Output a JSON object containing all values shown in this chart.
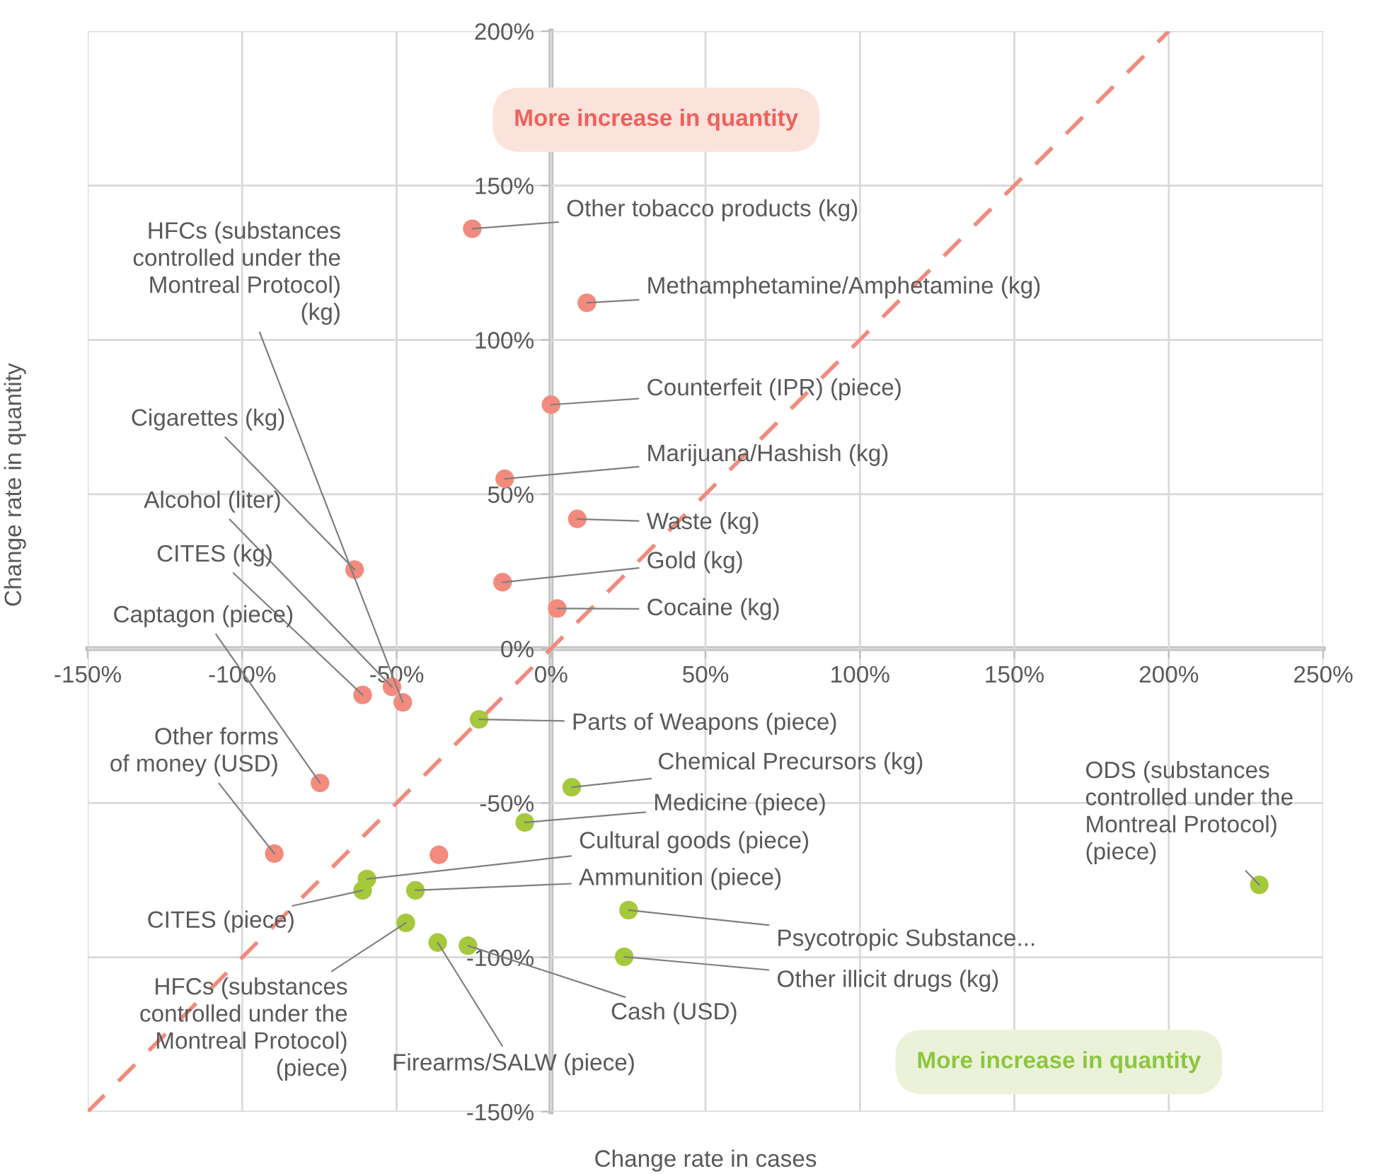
{
  "chart_data": {
    "type": "scatter",
    "xlabel": "Change rate in cases",
    "ylabel": "Change rate in quantity",
    "xlim": [
      -150,
      250
    ],
    "ylim": [
      -150,
      200
    ],
    "xticks": [
      {
        "value": -150,
        "label": "-150%"
      },
      {
        "value": -100,
        "label": "-100%"
      },
      {
        "value": -50,
        "label": "-50%"
      },
      {
        "value": 0,
        "label": "0%"
      },
      {
        "value": 50,
        "label": "50%"
      },
      {
        "value": 100,
        "label": "100%"
      },
      {
        "value": 150,
        "label": "150%"
      },
      {
        "value": 200,
        "label": "200%"
      },
      {
        "value": 250,
        "label": "250%"
      }
    ],
    "yticks": [
      {
        "value": -150,
        "label": "-150%"
      },
      {
        "value": -100,
        "label": "-100%"
      },
      {
        "value": -50,
        "label": "-50%"
      },
      {
        "value": 0,
        "label": "0%"
      },
      {
        "value": 50,
        "label": "50%"
      },
      {
        "value": 100,
        "label": "100%"
      },
      {
        "value": 150,
        "label": "150%"
      },
      {
        "value": 200,
        "label": "200%"
      }
    ],
    "grid": true,
    "marker": "circle",
    "series": [
      {
        "type": "line",
        "color": "#f28b7d",
        "line_style": "dashed",
        "marker": "none",
        "x": [
          -150,
          200
        ],
        "values": [
          -150,
          200
        ]
      },
      {
        "color": "#f28b7d",
        "x": [
          -25.5,
          11.6,
          0,
          -15,
          8.5,
          -15.7,
          2,
          -63.6,
          -51.5,
          -61,
          -48,
          -74.8,
          -89.6,
          -36.3
        ],
        "values": [
          136,
          112,
          79,
          55,
          42,
          21.5,
          13,
          25.6,
          -12.4,
          -15,
          -17.4,
          -43.5,
          -66.4,
          -66.8
        ]
      },
      {
        "color": "#a5c83c",
        "x": [
          -23.3,
          6.7,
          -8.5,
          -59.6,
          -61,
          -43.9,
          -47,
          -36.7,
          -26.9,
          25.1,
          23.7,
          229.3
        ],
        "values": [
          -22.9,
          -44.9,
          -56.3,
          -74.6,
          -78.3,
          -78.3,
          -88.8,
          -95.2,
          -96.2,
          -84.7,
          -99.8,
          -76.5
        ]
      }
    ],
    "annotations": [
      "More increase in quantity",
      "More increase in quantity",
      {
        "text": "Other tobacco products (kg)",
        "x": -25.5,
        "y": 136
      },
      {
        "text": "Methamphetamine/Amphetamine (kg)",
        "x": 11.6,
        "y": 112
      },
      {
        "text": "Counterfeit (IPR) (piece)",
        "x": 0,
        "y": 79
      },
      {
        "text": "Marijuana/Hashish (kg)",
        "x": -15,
        "y": 55
      },
      {
        "text": "Waste (kg)",
        "x": 8.5,
        "y": 42
      },
      {
        "text": "Gold (kg)",
        "x": -15.7,
        "y": 21.5
      },
      {
        "text": "Cocaine (kg)",
        "x": 2,
        "y": 13
      },
      {
        "text": "HFCs (substances\ncontrolled under the\nMontreal Protocol)\n(kg)",
        "x": -48,
        "y": -17.4
      },
      {
        "text": "Cigarettes (kg)",
        "x": -63.6,
        "y": 25.6
      },
      {
        "text": "Alcohol (liter)",
        "x": -51.5,
        "y": -12.4
      },
      {
        "text": "CITES (kg)",
        "x": -61,
        "y": -15
      },
      {
        "text": "Captagon (piece)",
        "x": -74.8,
        "y": -43.5
      },
      {
        "text": "Other forms\nof money (USD)",
        "x": -89.6,
        "y": -66.4
      },
      {
        "text": "Parts of Weapons (piece)",
        "x": -23.3,
        "y": -22.9
      },
      {
        "text": "Chemical Precursors (kg)",
        "x": 6.7,
        "y": -44.9
      },
      {
        "text": "Medicine (piece)",
        "x": -8.5,
        "y": -56.3
      },
      {
        "text": "Cultural goods (piece)",
        "x": -59.6,
        "y": -74.6
      },
      {
        "text": "Ammunition (piece)",
        "x": -43.9,
        "y": -78.3
      },
      {
        "text": "CITES (piece)",
        "x": -61,
        "y": -78.3
      },
      {
        "text": "HFCs (substances\ncontrolled under the\nMontreal Protocol)\n(piece)",
        "x": -47,
        "y": -88.8
      },
      {
        "text": "Firearms/SALW (piece)",
        "x": -36.7,
        "y": -95.2
      },
      {
        "text": "Cash (USD)",
        "x": -26.9,
        "y": -96.2
      },
      {
        "text": "Psycotropic Substance...",
        "x": 25.1,
        "y": -84.7
      },
      {
        "text": "Other illicit drugs (kg)",
        "x": 23.7,
        "y": -99.8
      },
      {
        "text": "ODS (substances\ncontrolled under the\nMontreal Protocol)\n(piece)",
        "x": 229.3,
        "y": -76.5
      }
    ]
  }
}
